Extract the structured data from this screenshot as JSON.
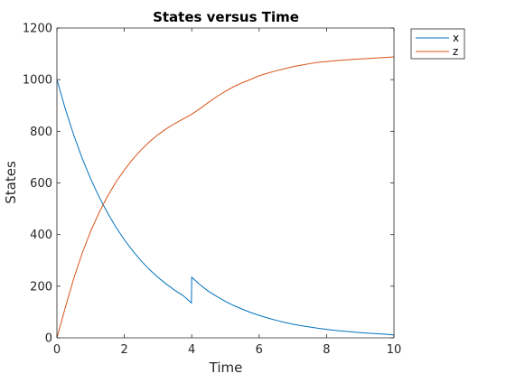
{
  "chart_data": {
    "type": "line",
    "title": "States versus Time",
    "xlabel": "Time",
    "ylabel": "States",
    "xlim": [
      0,
      10
    ],
    "ylim": [
      0,
      1200
    ],
    "xticks": [
      0,
      2,
      4,
      6,
      8,
      10
    ],
    "yticks": [
      0,
      200,
      400,
      600,
      800,
      1000,
      1200
    ],
    "grid": false,
    "legend": "top-right-outside",
    "series": [
      {
        "name": "x",
        "color": "#0072BD",
        "points": [
          [
            0,
            1000
          ],
          [
            0.25,
            886
          ],
          [
            0.5,
            785
          ],
          [
            0.75,
            695
          ],
          [
            1,
            616
          ],
          [
            1.25,
            546
          ],
          [
            1.5,
            484
          ],
          [
            1.75,
            429
          ],
          [
            2,
            380
          ],
          [
            2.25,
            337
          ],
          [
            2.5,
            298
          ],
          [
            2.75,
            264
          ],
          [
            3,
            234
          ],
          [
            3.25,
            208
          ],
          [
            3.5,
            184
          ],
          [
            3.75,
            163
          ],
          [
            3.99,
            135
          ],
          [
            4,
            235
          ],
          [
            4.25,
            205
          ],
          [
            4.5,
            180
          ],
          [
            4.75,
            160
          ],
          [
            5,
            141
          ],
          [
            5.25,
            125
          ],
          [
            5.5,
            111
          ],
          [
            5.75,
            98
          ],
          [
            6,
            87
          ],
          [
            6.25,
            77
          ],
          [
            6.5,
            68
          ],
          [
            6.75,
            60
          ],
          [
            7,
            53
          ],
          [
            7.25,
            47
          ],
          [
            7.5,
            42
          ],
          [
            7.75,
            37
          ],
          [
            8,
            33
          ],
          [
            8.25,
            29
          ],
          [
            8.5,
            26
          ],
          [
            8.75,
            23
          ],
          [
            9,
            20
          ],
          [
            9.25,
            18
          ],
          [
            9.5,
            16
          ],
          [
            9.75,
            14
          ],
          [
            10,
            11
          ]
        ]
      },
      {
        "name": "z",
        "color": "#D95319",
        "points": [
          [
            0,
            0
          ],
          [
            0.25,
            118
          ],
          [
            0.5,
            230
          ],
          [
            0.75,
            328
          ],
          [
            1,
            412
          ],
          [
            1.25,
            485
          ],
          [
            1.5,
            548
          ],
          [
            1.75,
            603
          ],
          [
            2,
            650
          ],
          [
            2.25,
            692
          ],
          [
            2.5,
            728
          ],
          [
            2.75,
            760
          ],
          [
            3,
            787
          ],
          [
            3.25,
            810
          ],
          [
            3.5,
            830
          ],
          [
            3.75,
            848
          ],
          [
            4,
            866
          ],
          [
            4.25,
            888
          ],
          [
            4.5,
            912
          ],
          [
            4.75,
            935
          ],
          [
            5,
            955
          ],
          [
            5.25,
            973
          ],
          [
            5.5,
            988
          ],
          [
            5.75,
            1001
          ],
          [
            6,
            1015
          ],
          [
            6.25,
            1025
          ],
          [
            6.5,
            1034
          ],
          [
            6.75,
            1042
          ],
          [
            7,
            1050
          ],
          [
            7.25,
            1056
          ],
          [
            7.5,
            1062
          ],
          [
            7.75,
            1067
          ],
          [
            8,
            1070
          ],
          [
            8.25,
            1073
          ],
          [
            8.5,
            1076
          ],
          [
            8.75,
            1078
          ],
          [
            9,
            1080
          ],
          [
            9.25,
            1082
          ],
          [
            9.5,
            1084
          ],
          [
            9.75,
            1086
          ],
          [
            10,
            1088
          ]
        ]
      }
    ]
  }
}
